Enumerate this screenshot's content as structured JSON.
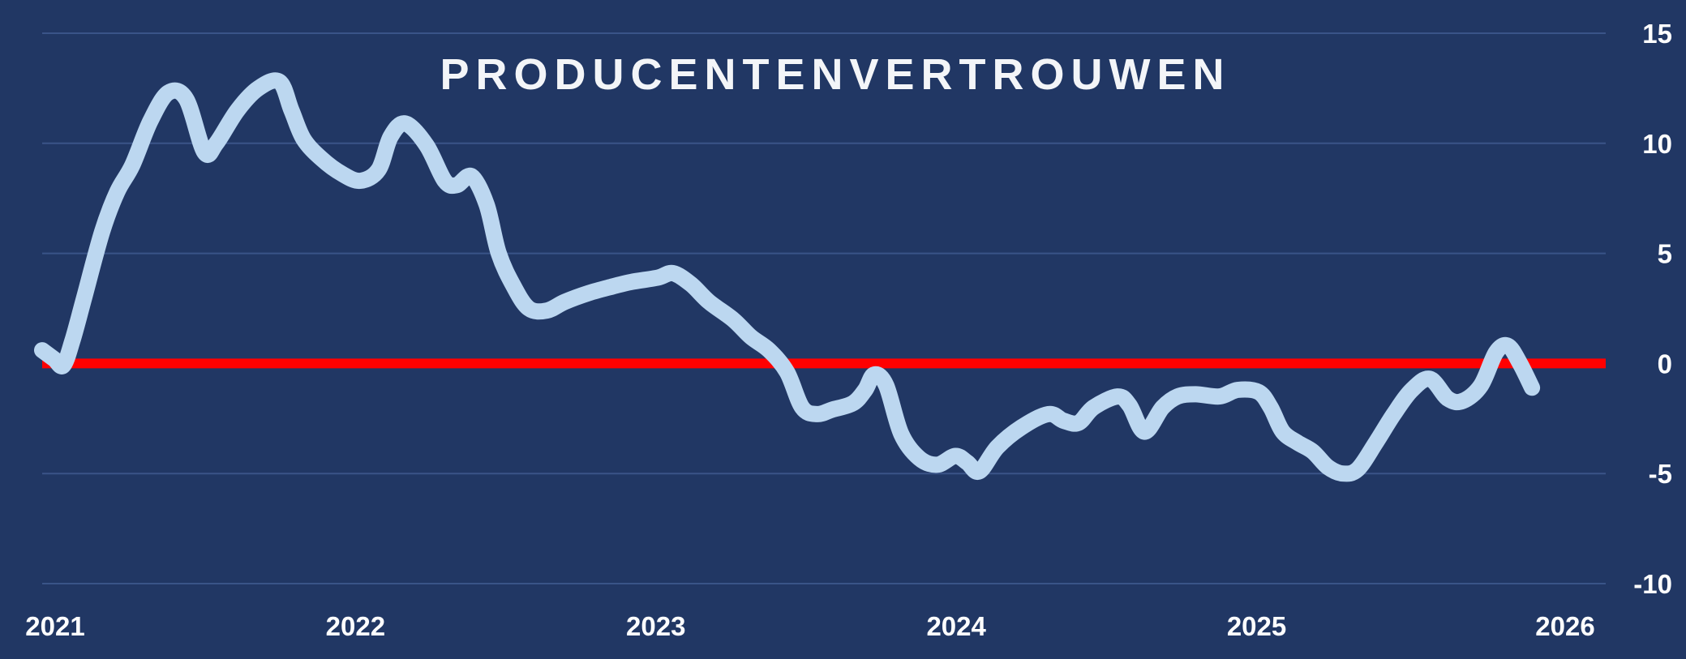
{
  "chart_data": {
    "type": "line",
    "title": "PRODUCENTENVERTROUWEN",
    "xlabel": "",
    "ylabel": "",
    "x_tick_labels": [
      "2021",
      "2022",
      "2023",
      "2024",
      "2025",
      "2026"
    ],
    "y_tick_labels": [
      "15",
      "10",
      "5",
      "0",
      "-5",
      "-10"
    ],
    "xlim": [
      2021.0,
      2026.2
    ],
    "ylim": [
      -10,
      15
    ],
    "grid": true,
    "reference_line": {
      "y": 0,
      "color": "#ff0000"
    },
    "series": [
      {
        "color": "#bcd7f0",
        "points": [
          [
            2021.0,
            0.6
          ],
          [
            2021.04,
            0.2
          ],
          [
            2021.07,
            -0.1
          ],
          [
            2021.1,
            1.0
          ],
          [
            2021.14,
            3.0
          ],
          [
            2021.2,
            6.0
          ],
          [
            2021.25,
            7.8
          ],
          [
            2021.3,
            9.0
          ],
          [
            2021.36,
            11.0
          ],
          [
            2021.42,
            12.3
          ],
          [
            2021.48,
            12.0
          ],
          [
            2021.54,
            9.6
          ],
          [
            2021.58,
            10.0
          ],
          [
            2021.65,
            11.5
          ],
          [
            2021.72,
            12.5
          ],
          [
            2021.79,
            12.8
          ],
          [
            2021.83,
            11.5
          ],
          [
            2021.87,
            10.2
          ],
          [
            2021.93,
            9.3
          ],
          [
            2022.0,
            8.6
          ],
          [
            2022.06,
            8.3
          ],
          [
            2022.12,
            8.8
          ],
          [
            2022.16,
            10.3
          ],
          [
            2022.21,
            10.9
          ],
          [
            2022.28,
            9.9
          ],
          [
            2022.34,
            8.3
          ],
          [
            2022.38,
            8.1
          ],
          [
            2022.43,
            8.5
          ],
          [
            2022.48,
            7.2
          ],
          [
            2022.52,
            5.0
          ],
          [
            2022.57,
            3.5
          ],
          [
            2022.62,
            2.5
          ],
          [
            2022.68,
            2.4
          ],
          [
            2022.74,
            2.8
          ],
          [
            2022.82,
            3.2
          ],
          [
            2022.9,
            3.5
          ],
          [
            2022.96,
            3.7
          ],
          [
            2023.05,
            3.9
          ],
          [
            2023.1,
            4.1
          ],
          [
            2023.16,
            3.6
          ],
          [
            2023.22,
            2.8
          ],
          [
            2023.3,
            2.0
          ],
          [
            2023.36,
            1.2
          ],
          [
            2023.42,
            0.6
          ],
          [
            2023.48,
            -0.4
          ],
          [
            2023.53,
            -2.0
          ],
          [
            2023.58,
            -2.3
          ],
          [
            2023.63,
            -2.1
          ],
          [
            2023.7,
            -1.8
          ],
          [
            2023.74,
            -1.2
          ],
          [
            2023.77,
            -0.5
          ],
          [
            2023.81,
            -1.0
          ],
          [
            2023.86,
            -3.2
          ],
          [
            2023.92,
            -4.3
          ],
          [
            2023.98,
            -4.6
          ],
          [
            2024.04,
            -4.2
          ],
          [
            2024.08,
            -4.5
          ],
          [
            2024.12,
            -4.9
          ],
          [
            2024.18,
            -3.8
          ],
          [
            2024.26,
            -2.9
          ],
          [
            2024.35,
            -2.3
          ],
          [
            2024.4,
            -2.6
          ],
          [
            2024.45,
            -2.7
          ],
          [
            2024.5,
            -2.0
          ],
          [
            2024.58,
            -1.5
          ],
          [
            2024.62,
            -1.9
          ],
          [
            2024.67,
            -3.1
          ],
          [
            2024.73,
            -2.0
          ],
          [
            2024.78,
            -1.5
          ],
          [
            2024.84,
            -1.4
          ],
          [
            2024.92,
            -1.5
          ],
          [
            2024.98,
            -1.2
          ],
          [
            2025.05,
            -1.3
          ],
          [
            2025.09,
            -2.0
          ],
          [
            2025.13,
            -3.1
          ],
          [
            2025.18,
            -3.6
          ],
          [
            2025.23,
            -4.0
          ],
          [
            2025.28,
            -4.7
          ],
          [
            2025.33,
            -5.0
          ],
          [
            2025.38,
            -4.8
          ],
          [
            2025.44,
            -3.6
          ],
          [
            2025.5,
            -2.3
          ],
          [
            2025.56,
            -1.2
          ],
          [
            2025.62,
            -0.7
          ],
          [
            2025.68,
            -1.6
          ],
          [
            2025.73,
            -1.7
          ],
          [
            2025.79,
            -1.0
          ],
          [
            2025.84,
            0.5
          ],
          [
            2025.88,
            0.8
          ],
          [
            2025.92,
            0.0
          ],
          [
            2025.96,
            -1.1
          ]
        ]
      }
    ]
  }
}
